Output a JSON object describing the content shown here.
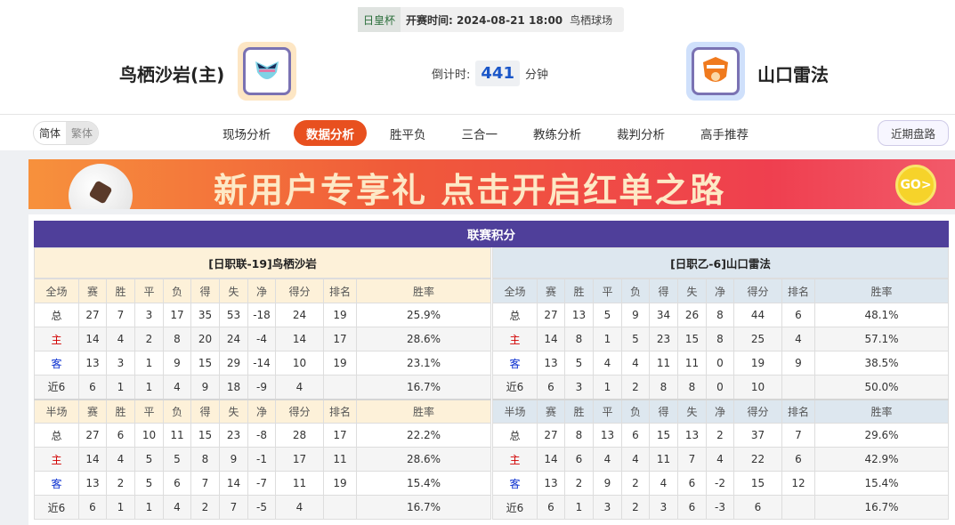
{
  "match": {
    "competition": "日皇杯",
    "start_label": "开赛时间:",
    "start_time": "2024-08-21 18:00",
    "venue": "鸟栖球场"
  },
  "home_team": {
    "name": "鸟栖沙岩(主)"
  },
  "away_team": {
    "name": "山口雷法"
  },
  "countdown": {
    "label": "倒计时:",
    "value": "441",
    "unit": "分钟"
  },
  "lang": {
    "simplified": "简体",
    "traditional": "繁体"
  },
  "tabs": [
    {
      "label": "现场分析"
    },
    {
      "label": "数据分析",
      "active": true
    },
    {
      "label": "胜平负"
    },
    {
      "label": "三合一"
    },
    {
      "label": "教练分析"
    },
    {
      "label": "裁判分析"
    },
    {
      "label": "高手推荐"
    }
  ],
  "recent_button": "近期盘路",
  "banner": {
    "text": "新用户专享礼 点击开启红单之路",
    "go": "GO>"
  },
  "standings": {
    "title": "联赛积分",
    "columns": [
      "赛",
      "胜",
      "平",
      "负",
      "得",
      "失",
      "净",
      "得分",
      "排名",
      "胜率"
    ],
    "home": {
      "header": "[日职联-19]鸟栖沙岩",
      "full_label": "全场",
      "full": [
        [
          "总",
          "27",
          "7",
          "3",
          "17",
          "35",
          "53",
          "-18",
          "24",
          "19",
          "25.9%"
        ],
        [
          "主",
          "14",
          "4",
          "2",
          "8",
          "20",
          "24",
          "-4",
          "14",
          "17",
          "28.6%"
        ],
        [
          "客",
          "13",
          "3",
          "1",
          "9",
          "15",
          "29",
          "-14",
          "10",
          "19",
          "23.1%"
        ],
        [
          "近6",
          "6",
          "1",
          "1",
          "4",
          "9",
          "18",
          "-9",
          "4",
          "",
          "16.7%"
        ]
      ],
      "half_label": "半场",
      "half": [
        [
          "总",
          "27",
          "6",
          "10",
          "11",
          "15",
          "23",
          "-8",
          "28",
          "17",
          "22.2%"
        ],
        [
          "主",
          "14",
          "4",
          "5",
          "5",
          "8",
          "9",
          "-1",
          "17",
          "11",
          "28.6%"
        ],
        [
          "客",
          "13",
          "2",
          "5",
          "6",
          "7",
          "14",
          "-7",
          "11",
          "19",
          "15.4%"
        ],
        [
          "近6",
          "6",
          "1",
          "1",
          "4",
          "2",
          "7",
          "-5",
          "4",
          "",
          "16.7%"
        ]
      ]
    },
    "away": {
      "header": "[日职乙-6]山口雷法",
      "full_label": "全场",
      "full": [
        [
          "总",
          "27",
          "13",
          "5",
          "9",
          "34",
          "26",
          "8",
          "44",
          "6",
          "48.1%"
        ],
        [
          "主",
          "14",
          "8",
          "1",
          "5",
          "23",
          "15",
          "8",
          "25",
          "4",
          "57.1%"
        ],
        [
          "客",
          "13",
          "5",
          "4",
          "4",
          "11",
          "11",
          "0",
          "19",
          "9",
          "38.5%"
        ],
        [
          "近6",
          "6",
          "3",
          "1",
          "2",
          "8",
          "8",
          "0",
          "10",
          "",
          "50.0%"
        ]
      ],
      "half_label": "半场",
      "half": [
        [
          "总",
          "27",
          "8",
          "13",
          "6",
          "15",
          "13",
          "2",
          "37",
          "7",
          "29.6%"
        ],
        [
          "主",
          "14",
          "6",
          "4",
          "4",
          "11",
          "7",
          "4",
          "22",
          "6",
          "42.9%"
        ],
        [
          "客",
          "13",
          "2",
          "9",
          "2",
          "4",
          "6",
          "-2",
          "15",
          "12",
          "15.4%"
        ],
        [
          "近6",
          "6",
          "1",
          "3",
          "2",
          "3",
          "6",
          "-3",
          "6",
          "",
          "16.7%"
        ]
      ]
    }
  }
}
